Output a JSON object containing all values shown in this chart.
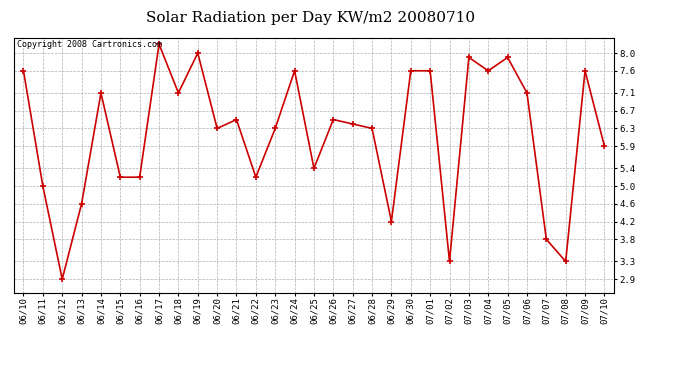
{
  "title": "Solar Radiation per Day KW/m2 20080710",
  "copyright_text": "Copyright 2008 Cartronics.com",
  "dates": [
    "06/10",
    "06/11",
    "06/12",
    "06/13",
    "06/14",
    "06/15",
    "06/16",
    "06/17",
    "06/18",
    "06/19",
    "06/20",
    "06/21",
    "06/22",
    "06/23",
    "06/24",
    "06/25",
    "06/26",
    "06/27",
    "06/28",
    "06/29",
    "06/30",
    "07/01",
    "07/02",
    "07/03",
    "07/04",
    "07/05",
    "07/06",
    "07/07",
    "07/08",
    "07/09",
    "07/10"
  ],
  "values": [
    7.6,
    5.0,
    2.9,
    4.6,
    7.1,
    5.2,
    5.2,
    8.2,
    7.1,
    8.0,
    6.3,
    6.5,
    5.2,
    6.3,
    7.6,
    5.4,
    6.5,
    6.4,
    6.3,
    4.2,
    7.6,
    7.6,
    3.3,
    7.9,
    7.6,
    7.9,
    7.1,
    3.8,
    3.3,
    7.6,
    5.9
  ],
  "line_color": "#cc0000",
  "marker_color": "#cc0000",
  "background_color": "#ffffff",
  "plot_background": "#ffffff",
  "grid_color": "#b0b0b0",
  "ylim": [
    2.6,
    8.35
  ],
  "yticks": [
    2.9,
    3.3,
    3.8,
    4.2,
    4.6,
    5.0,
    5.4,
    5.9,
    6.3,
    6.7,
    7.1,
    7.6,
    8.0
  ],
  "title_fontsize": 11,
  "tick_fontsize": 6.5,
  "copyright_fontsize": 6
}
